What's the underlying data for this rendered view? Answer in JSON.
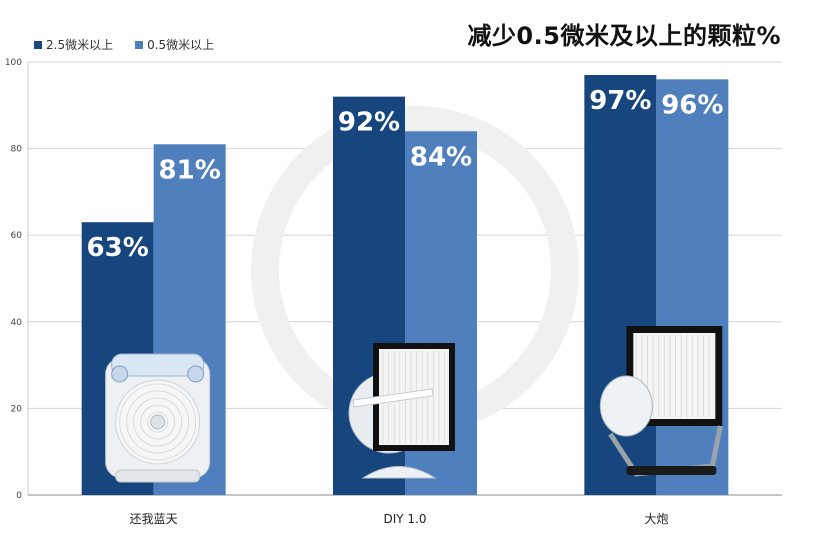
{
  "chart_data": {
    "type": "bar",
    "title": "减少0.5微米及以上的颗粒%",
    "xlabel": "",
    "ylabel": "",
    "ylim": [
      0,
      100
    ],
    "yticks": [
      0,
      20,
      40,
      60,
      80,
      100
    ],
    "grid": true,
    "legend_position": "top-left",
    "categories": [
      "还我蓝天",
      "DIY 1.0",
      "大炮"
    ],
    "series": [
      {
        "name": "2.5微米以上",
        "values": [
          63,
          92,
          97
        ],
        "labels": [
          "63%",
          "92%",
          "97%"
        ],
        "color": "#17467f"
      },
      {
        "name": "0.5微米以上",
        "values": [
          81,
          84,
          96
        ],
        "labels": [
          "81%",
          "84%",
          "96%"
        ],
        "color": "#4f80bd"
      }
    ]
  }
}
